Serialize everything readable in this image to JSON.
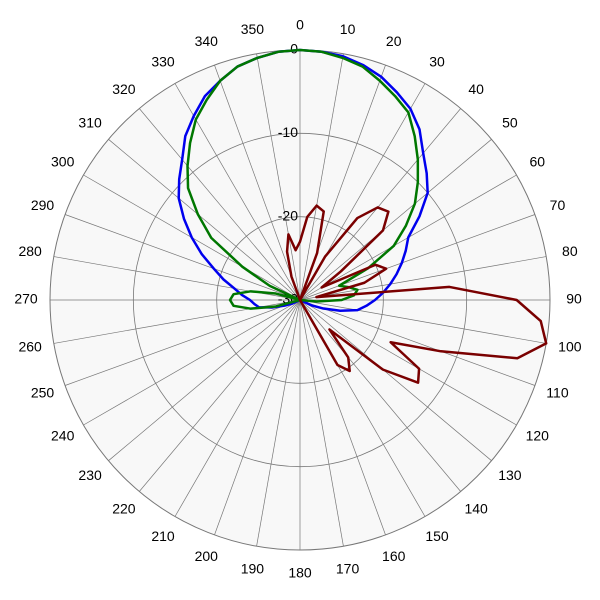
{
  "chart_data": {
    "type": "polar",
    "theta": [
      0,
      5,
      10,
      15,
      20,
      25,
      30,
      35,
      40,
      45,
      50,
      55,
      60,
      65,
      70,
      75,
      80,
      85,
      90,
      95,
      100,
      105,
      110,
      115,
      120,
      125,
      130,
      135,
      140,
      145,
      150,
      155,
      160,
      165,
      170,
      175,
      180,
      185,
      190,
      195,
      200,
      205,
      210,
      215,
      220,
      225,
      230,
      235,
      240,
      245,
      250,
      255,
      260,
      265,
      270,
      275,
      280,
      285,
      290,
      295,
      300,
      305,
      310,
      315,
      320,
      325,
      330,
      335,
      340,
      345,
      350,
      355
    ],
    "thetaticks": [
      0,
      10,
      20,
      30,
      40,
      50,
      60,
      70,
      80,
      90,
      100,
      110,
      120,
      130,
      140,
      150,
      160,
      170,
      180,
      190,
      200,
      210,
      220,
      230,
      240,
      250,
      260,
      270,
      280,
      290,
      300,
      310,
      320,
      330,
      340,
      350
    ],
    "rlim": [
      -30,
      0
    ],
    "rticks": [
      -30,
      -20,
      -10,
      0
    ],
    "series": [
      {
        "color": "#0000ee",
        "values": [
          0,
          -0.1,
          -0.3,
          -0.8,
          -1.5,
          -2.5,
          -3.5,
          -5,
          -7,
          -8.5,
          -10,
          -12.5,
          -15,
          -16,
          -17,
          -18,
          -19,
          -20,
          -21,
          -22,
          -23,
          -25,
          -27,
          -28.5,
          -30,
          -30,
          -30,
          -30,
          -30,
          -30,
          -30,
          -30,
          -30,
          -30,
          -30,
          -30,
          -30,
          -30,
          -30,
          -30,
          -30,
          -30,
          -30,
          -30,
          -30,
          -30,
          -30,
          -30,
          -30,
          -29,
          -28,
          -26.5,
          -25,
          -24.5,
          -24,
          -23,
          -22,
          -20.5,
          -19,
          -17,
          -15,
          -13,
          -11,
          -9.5,
          -8,
          -6,
          -4.5,
          -3,
          -2,
          -1,
          -0.5,
          -0.1
        ]
      },
      {
        "color": "#007700",
        "values": [
          0,
          -0.1,
          -0.5,
          -1,
          -2,
          -3,
          -4,
          -6,
          -8,
          -10,
          -12,
          -14.5,
          -17,
          -21,
          -25,
          -24,
          -23,
          -23.5,
          -25,
          -28,
          -30,
          -30,
          -30,
          -30,
          -30,
          -30,
          -30,
          -30,
          -30,
          -30,
          -30,
          -30,
          -30,
          -30,
          -30,
          -30,
          -30,
          -30,
          -30,
          -30,
          -30,
          -30,
          -30,
          -30,
          -30,
          -30,
          -30,
          -30,
          -30,
          -30,
          -30,
          -27,
          -24,
          -22,
          -21.6,
          -22,
          -24,
          -27,
          -30,
          -26,
          -22,
          -17,
          -14,
          -11,
          -9,
          -7,
          -5,
          -3.5,
          -2,
          -1,
          -0.5,
          -0.1
        ]
      },
      {
        "color": "#7a0000",
        "values": [
          -23,
          -20,
          -18.5,
          -19,
          -24,
          -30,
          -24,
          -18,
          -15.5,
          -15,
          -17,
          -24,
          -27,
          -20,
          -19,
          -22,
          -28,
          -12,
          -4,
          -1,
          0,
          -3,
          -12,
          -18,
          -13.5,
          -12.7,
          -17,
          -25,
          -21,
          -19.6,
          -21,
          -30,
          -30,
          -30,
          -30,
          -30,
          -30,
          -30,
          -30,
          -30,
          -30,
          -30,
          -30,
          -30,
          -30,
          -30,
          -30,
          -30,
          -30,
          -30,
          -30,
          -30,
          -30,
          -30,
          -30,
          -30,
          -30,
          -30,
          -30,
          -30,
          -30,
          -30,
          -30,
          -30,
          -30,
          -30,
          -30,
          -30,
          -27,
          -24,
          -22,
          -24
        ]
      }
    ]
  }
}
